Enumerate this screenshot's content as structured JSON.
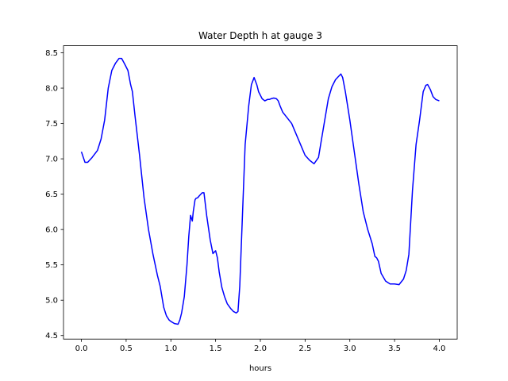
{
  "chart_data": {
    "type": "line",
    "title": "Water Depth h at gauge 3",
    "xlabel": "hours",
    "ylabel": "",
    "xlim": [
      -0.2,
      4.2
    ],
    "ylim": [
      4.45,
      8.6
    ],
    "xticks": [
      0.0,
      0.5,
      1.0,
      1.5,
      2.0,
      2.5,
      3.0,
      3.5,
      4.0
    ],
    "xtick_labels": [
      "0.0",
      "0.5",
      "1.0",
      "1.5",
      "2.0",
      "2.5",
      "3.0",
      "3.5",
      "4.0"
    ],
    "yticks": [
      4.5,
      5.0,
      5.5,
      6.0,
      6.5,
      7.0,
      7.5,
      8.0,
      8.5
    ],
    "ytick_labels": [
      "4.5",
      "5.0",
      "5.5",
      "6.0",
      "6.5",
      "7.0",
      "7.5",
      "8.0",
      "8.5"
    ],
    "grid": false,
    "series": [
      {
        "color": "#0000ff",
        "x": [
          0.0,
          0.04,
          0.07,
          0.12,
          0.18,
          0.22,
          0.26,
          0.3,
          0.34,
          0.38,
          0.42,
          0.45,
          0.48,
          0.52,
          0.55,
          0.57,
          0.6,
          0.65,
          0.7,
          0.75,
          0.8,
          0.85,
          0.88,
          0.9,
          0.92,
          0.95,
          0.98,
          1.0,
          1.04,
          1.08,
          1.1,
          1.12,
          1.15,
          1.18,
          1.2,
          1.22,
          1.24,
          1.25,
          1.27,
          1.28,
          1.3,
          1.32,
          1.35,
          1.37,
          1.4,
          1.44,
          1.47,
          1.5,
          1.52,
          1.54,
          1.57,
          1.6,
          1.63,
          1.67,
          1.7,
          1.73,
          1.75,
          1.77,
          1.8,
          1.83,
          1.87,
          1.9,
          1.93,
          1.96,
          1.98,
          2.02,
          2.05,
          2.08,
          2.1,
          2.12,
          2.15,
          2.18,
          2.2,
          2.22,
          2.25,
          2.3,
          2.35,
          2.4,
          2.45,
          2.5,
          2.55,
          2.6,
          2.65,
          2.68,
          2.72,
          2.76,
          2.8,
          2.84,
          2.87,
          2.9,
          2.92,
          2.95,
          3.0,
          3.05,
          3.1,
          3.15,
          3.2,
          3.25,
          3.28,
          3.3,
          3.32,
          3.35,
          3.4,
          3.45,
          3.5,
          3.55,
          3.6,
          3.63,
          3.66,
          3.7,
          3.74,
          3.78,
          3.82,
          3.85,
          3.87,
          3.9,
          3.93,
          3.96,
          4.0
        ],
        "y": [
          7.1,
          6.95,
          6.95,
          7.02,
          7.12,
          7.28,
          7.55,
          8.0,
          8.25,
          8.35,
          8.42,
          8.42,
          8.35,
          8.25,
          8.05,
          7.95,
          7.6,
          7.05,
          6.45,
          6.0,
          5.65,
          5.35,
          5.2,
          5.05,
          4.9,
          4.78,
          4.72,
          4.7,
          4.67,
          4.66,
          4.72,
          4.82,
          5.05,
          5.5,
          5.9,
          6.2,
          6.12,
          6.25,
          6.42,
          6.44,
          6.45,
          6.48,
          6.52,
          6.52,
          6.2,
          5.85,
          5.66,
          5.7,
          5.6,
          5.4,
          5.18,
          5.05,
          4.95,
          4.88,
          4.84,
          4.82,
          4.84,
          5.2,
          6.2,
          7.2,
          7.75,
          8.05,
          8.15,
          8.05,
          7.95,
          7.85,
          7.82,
          7.84,
          7.84,
          7.85,
          7.86,
          7.85,
          7.82,
          7.75,
          7.66,
          7.58,
          7.5,
          7.35,
          7.2,
          7.05,
          6.98,
          6.93,
          7.02,
          7.25,
          7.55,
          7.85,
          8.02,
          8.12,
          8.16,
          8.2,
          8.15,
          7.95,
          7.55,
          7.1,
          6.65,
          6.25,
          6.0,
          5.8,
          5.62,
          5.6,
          5.55,
          5.38,
          5.27,
          5.23,
          5.23,
          5.22,
          5.3,
          5.42,
          5.65,
          6.55,
          7.2,
          7.55,
          7.95,
          8.04,
          8.05,
          7.98,
          7.88,
          7.84,
          7.82
        ]
      }
    ]
  }
}
